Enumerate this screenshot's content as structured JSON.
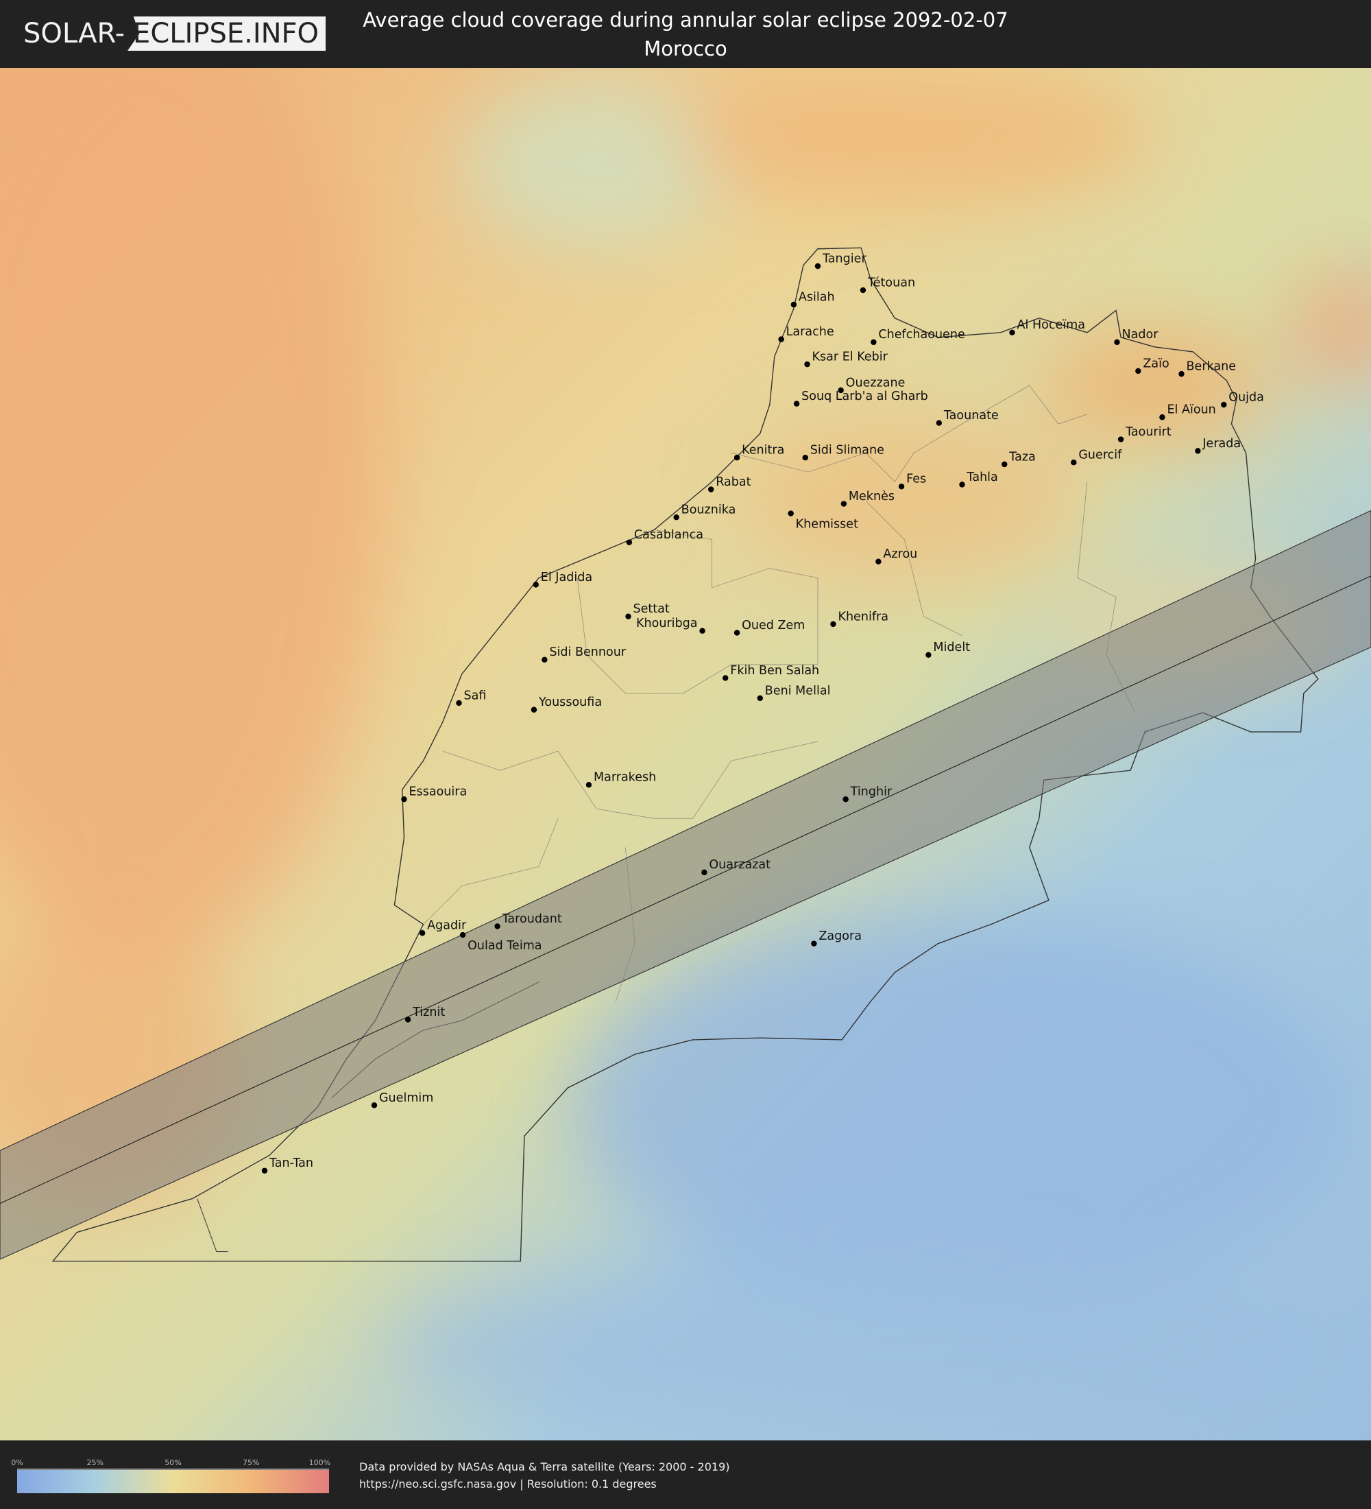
{
  "header": {
    "logo_left": "SOLAR-",
    "logo_right": "ECLIPSE.INFO",
    "title": "Average cloud coverage during annular solar eclipse 2092-02-07",
    "subtitle": "Morocco"
  },
  "map": {
    "country": "Morocco",
    "colors": {
      "clear": "#85a7e2",
      "low": "#a8cfe0",
      "mid": "#ecdd98",
      "high": "#f0b878",
      "overcast": "#e27e7e",
      "eclipse_band": "#808080"
    },
    "cities": [
      "Tangier",
      "Tétouan",
      "Asilah",
      "Larache",
      "Chefchaouene",
      "Al Hoceïma",
      "Nador",
      "Zaïo",
      "Berkane",
      "Ksar El Kebir",
      "Ouezzane",
      "Souq Larb'a al Gharb",
      "Oujda",
      "El Aïoun",
      "Taounate",
      "Taourirt",
      "Jerada",
      "Kenitra",
      "Sidi Slimane",
      "Taza",
      "Guercif",
      "Rabat",
      "Fes",
      "Tahla",
      "Meknès",
      "Khemisset",
      "Bouznika",
      "Casablanca",
      "Azrou",
      "El Jadida",
      "Settat",
      "Khenifra",
      "Khouribga",
      "Oued Zem",
      "Midelt",
      "Sidi Bennour",
      "Fkih Ben Salah",
      "Beni Mellal",
      "Safi",
      "Youssoufia",
      "Marrakesh",
      "Essaouira",
      "Tinghir",
      "Ouarzazat",
      "Agadir",
      "Taroudant",
      "Oulad Teima",
      "Zagora",
      "Tiznit",
      "Guelmim",
      "Tan-Tan"
    ]
  },
  "legend": {
    "ticks": [
      "0%",
      "25%",
      "50%",
      "75%",
      "100%"
    ]
  },
  "footer": {
    "line1": "Data provided by NASAs Aqua & Terra satellite (Years: 2000 - 2019)",
    "line2": "https://neo.sci.gsfc.nasa.gov | Resolution: 0.1 degrees"
  }
}
